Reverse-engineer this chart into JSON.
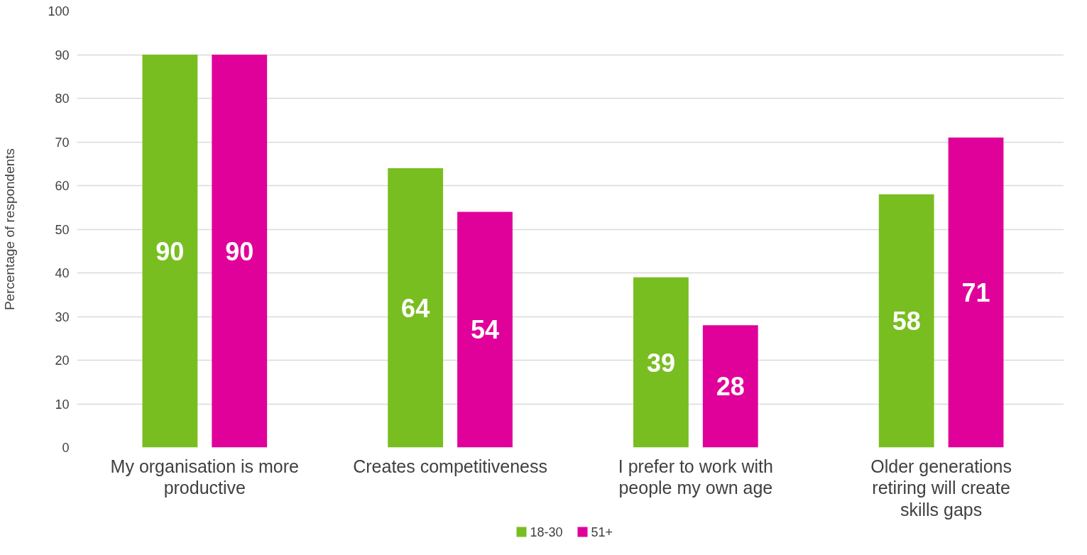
{
  "chart_data": {
    "type": "bar",
    "ylabel": "Percentage of respondents",
    "categories": [
      "My organisation is more productive",
      "Creates competitiveness",
      "I prefer to work with people my own age",
      "Older generations retiring will create skills gaps"
    ],
    "series": [
      {
        "name": "18-30",
        "color": "#78be20",
        "values": [
          90,
          64,
          39,
          58
        ]
      },
      {
        "name": "51+",
        "color": "#e0009a",
        "values": [
          90,
          54,
          28,
          71
        ]
      }
    ],
    "ylim": [
      0,
      100
    ],
    "yticks": [
      0,
      10,
      20,
      30,
      40,
      50,
      60,
      70,
      80,
      90,
      100
    ],
    "grid": "y",
    "legend": "bottom",
    "data_labels": true
  }
}
